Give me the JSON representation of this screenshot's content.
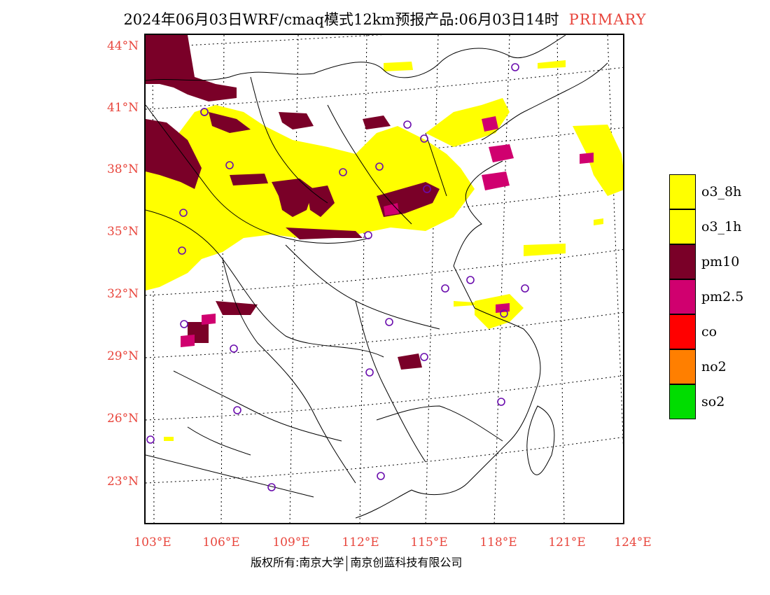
{
  "title": {
    "main": "2024年06月03日WRF/cmaq模式12km预报产品:06月03日14时",
    "tag": "PRIMARY",
    "tag_color": "#e8453c"
  },
  "axes": {
    "lat_labels": [
      "44°N",
      "41°N",
      "38°N",
      "35°N",
      "32°N",
      "29°N",
      "26°N",
      "23°N"
    ],
    "lon_labels": [
      "103°E",
      "106°E",
      "109°E",
      "112°E",
      "115°E",
      "118°E",
      "121°E",
      "124°E"
    ],
    "label_color": "#e8453c"
  },
  "legend": {
    "items": [
      {
        "label": "o3_8h",
        "color": "#ffff00"
      },
      {
        "label": "o3_1h",
        "color": "#ffff00"
      },
      {
        "label": "pm10",
        "color": "#7a0028"
      },
      {
        "label": "pm2.5",
        "color": "#d0006f"
      },
      {
        "label": "co",
        "color": "#ff0000"
      },
      {
        "label": "no2",
        "color": "#ff7f00"
      },
      {
        "label": "so2",
        "color": "#00dd00"
      }
    ]
  },
  "footer": {
    "left": "版权所有:南京大学",
    "right": "南京创蓝科技有限公司"
  }
}
